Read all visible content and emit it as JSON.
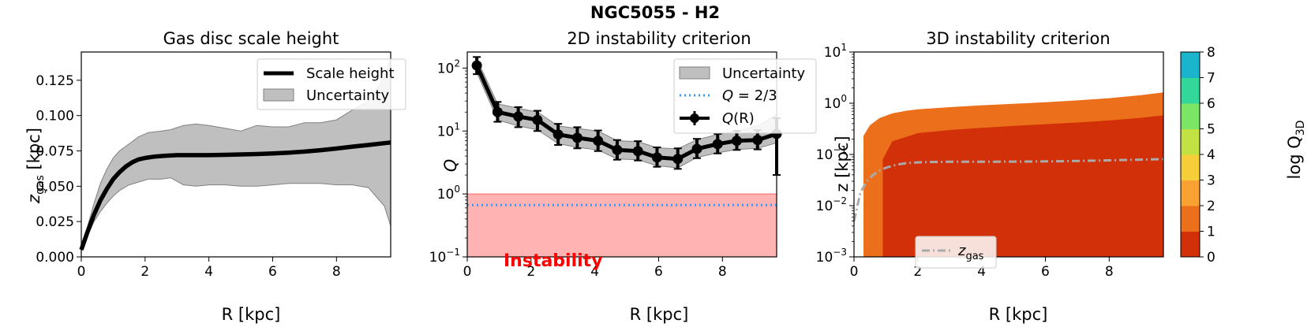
{
  "figure": {
    "title": "NGC5055 - H2"
  },
  "chart_data": [
    {
      "type": "line",
      "title": "Gas disc scale height",
      "xlabel": "R [kpc]",
      "ylabel_main": "z",
      "ylabel_sub": "gas",
      "ylabel_unit": " [kpc]",
      "xlim": [
        0,
        9.7
      ],
      "ylim": [
        0,
        0.145
      ],
      "xticks": [
        0,
        2,
        4,
        6,
        8
      ],
      "xtick_labels": [
        "0",
        "2",
        "4",
        "6",
        "8"
      ],
      "yticks": [
        0,
        0.025,
        0.05,
        0.075,
        0.1,
        0.125
      ],
      "ytick_labels": [
        "0.000",
        "0.025",
        "0.050",
        "0.075",
        "0.100",
        "0.125"
      ],
      "series": [
        {
          "name": "Scale height",
          "x": [
            0,
            0.2,
            0.4,
            0.6,
            0.8,
            1.0,
            1.2,
            1.4,
            1.6,
            1.8,
            2.0,
            2.3,
            2.6,
            3.0,
            3.5,
            4.0,
            4.5,
            5.0,
            5.5,
            6.0,
            6.5,
            7.0,
            7.5,
            8.0,
            8.5,
            9.0,
            9.5,
            9.7
          ],
          "y": [
            0.005,
            0.018,
            0.03,
            0.04,
            0.048,
            0.055,
            0.06,
            0.064,
            0.067,
            0.069,
            0.07,
            0.071,
            0.0715,
            0.072,
            0.072,
            0.072,
            0.0722,
            0.0725,
            0.0728,
            0.0732,
            0.0738,
            0.0745,
            0.0755,
            0.0767,
            0.078,
            0.0792,
            0.0805,
            0.081
          ]
        },
        {
          "name": "Uncertainty",
          "x": [
            0,
            0.2,
            0.4,
            0.6,
            0.8,
            1.0,
            1.2,
            1.5,
            1.8,
            2.1,
            2.5,
            2.8,
            3.2,
            3.6,
            4.0,
            4.5,
            5.0,
            5.5,
            6.0,
            6.5,
            7.0,
            7.5,
            8.0,
            8.5,
            9.0,
            9.5,
            9.7
          ],
          "upper": [
            0.006,
            0.022,
            0.038,
            0.052,
            0.062,
            0.07,
            0.075,
            0.08,
            0.085,
            0.088,
            0.089,
            0.09,
            0.093,
            0.094,
            0.093,
            0.091,
            0.089,
            0.093,
            0.092,
            0.092,
            0.095,
            0.095,
            0.097,
            0.104,
            0.11,
            0.127,
            0.14
          ],
          "lower": [
            0.004,
            0.015,
            0.025,
            0.032,
            0.038,
            0.043,
            0.047,
            0.051,
            0.053,
            0.055,
            0.055,
            0.056,
            0.051,
            0.05,
            0.051,
            0.051,
            0.05,
            0.05,
            0.051,
            0.052,
            0.052,
            0.052,
            0.051,
            0.051,
            0.049,
            0.036,
            0.022
          ]
        }
      ],
      "legend": {
        "placement": "upper-right",
        "line_label": "Scale height",
        "band_label": "Uncertainty"
      }
    },
    {
      "type": "scatter",
      "title": "2D instability criterion",
      "xlabel": "R [kpc]",
      "ylabel": "Q",
      "yscale": "log",
      "xlim": [
        0,
        9.7
      ],
      "ylim": [
        0.1,
        180
      ],
      "xticks": [
        0,
        2,
        4,
        6,
        8
      ],
      "xtick_labels": [
        "0",
        "2",
        "4",
        "6",
        "8"
      ],
      "yticks": [
        0.1,
        1,
        10,
        100
      ],
      "ytick_labels": [
        [
          "10",
          "−1"
        ],
        [
          "10",
          "0"
        ],
        [
          "10",
          "1"
        ],
        [
          "10",
          "2"
        ]
      ],
      "points": {
        "name": "Q(R)",
        "x": [
          0.3,
          0.95,
          1.6,
          2.2,
          2.85,
          3.45,
          4.1,
          4.7,
          5.35,
          5.95,
          6.6,
          7.2,
          7.85,
          8.45,
          9.1,
          9.7
        ],
        "y": [
          110,
          20,
          17,
          15,
          8.8,
          7.8,
          7.0,
          5.0,
          4.8,
          3.8,
          3.6,
          5.2,
          6.2,
          7.0,
          7.2,
          9.0
        ],
        "err_low": [
          80,
          14,
          11.5,
          10,
          6.0,
          5.3,
          4.8,
          3.5,
          3.4,
          2.7,
          2.5,
          3.7,
          4.4,
          5.0,
          5.1,
          2.0
        ],
        "err_high": [
          150,
          29,
          24,
          21,
          13,
          11.5,
          10.2,
          7.2,
          6.9,
          5.5,
          5.3,
          7.5,
          9.0,
          10.1,
          10.4,
          16
        ]
      },
      "uncertainty_band": {
        "name": "Uncertainty",
        "upper": [
          140,
          27,
          23,
          20,
          12,
          11,
          10,
          7,
          6.8,
          5.4,
          5.2,
          7.3,
          8.8,
          10,
          12,
          18
        ],
        "lower": [
          85,
          15,
          12,
          10.5,
          6.3,
          5.5,
          5.0,
          3.6,
          3.5,
          2.8,
          2.6,
          3.8,
          4.5,
          5.1,
          5.3,
          6.5
        ]
      },
      "threshold_line": {
        "label_prefix": "Q",
        "label_suffix": " = 2/3",
        "value": 0.6667
      },
      "instability_region": {
        "label": "Instability",
        "y_from": 0.1,
        "y_to": 1.0
      },
      "legend": {
        "placement": "upper-right",
        "band_label": "Uncertainty",
        "line_label_prefix": "Q",
        "line_label_suffix": " = 2/3",
        "points_label_prefix": "Q",
        "points_label_suffix": "(R)"
      }
    },
    {
      "type": "heatmap",
      "title": "3D instability criterion",
      "xlabel": "R [kpc]",
      "ylabel": "z [kpc]",
      "yscale": "log",
      "xlim": [
        0,
        9.7
      ],
      "ylim": [
        0.001,
        10
      ],
      "xticks": [
        0,
        2,
        4,
        6,
        8
      ],
      "xtick_labels": [
        "0",
        "2",
        "4",
        "6",
        "8"
      ],
      "yticks": [
        0.001,
        0.01,
        0.1,
        1,
        10
      ],
      "ytick_labels": [
        [
          "10",
          "−3"
        ],
        [
          "10",
          "−2"
        ],
        [
          "10",
          "−1"
        ],
        [
          "10",
          "0"
        ],
        [
          "10",
          "1"
        ]
      ],
      "levels": [
        0,
        1,
        2,
        3,
        4,
        5,
        6,
        7,
        8
      ],
      "level_colors": [
        "#d13008",
        "#ec6f1b",
        "#f9a233",
        "#f5ce3a",
        "#c2e244",
        "#7be566",
        "#33d79a",
        "#1ab4cc",
        "#2c8ae6"
      ],
      "colorbar": {
        "label_main": "log Q",
        "label_sub": "3D",
        "tick_labels": [
          "0",
          "1",
          "2",
          "3",
          "4",
          "5",
          "6",
          "7",
          "8"
        ]
      },
      "contours": {
        "r_start": 0.3,
        "r_inner_block": 0.9,
        "top_x": [
          0.3,
          0.5,
          0.8,
          1.2,
          1.6,
          2.0,
          3.0,
          4.0,
          5.0,
          6.0,
          7.0,
          8.0,
          9.0,
          9.7
        ],
        "top_z": [
          0.25,
          0.4,
          0.55,
          0.68,
          0.76,
          0.82,
          0.9,
          0.98,
          1.05,
          1.12,
          1.22,
          1.35,
          1.55,
          1.75
        ],
        "band_factors": [
          1.0,
          0.93,
          0.87,
          0.82,
          0.77,
          0.72,
          0.66,
          0.6,
          0.54
        ],
        "inner_top_x": [
          0.9,
          1.2,
          2.0,
          3.0,
          4.0,
          5.0,
          6.0,
          7.0,
          8.0,
          9.0,
          9.7
        ],
        "inner_top_z": [
          0.08,
          0.18,
          0.26,
          0.3,
          0.33,
          0.36,
          0.39,
          0.42,
          0.46,
          0.52,
          0.58
        ]
      },
      "zgas_line": {
        "name": "z_gas",
        "label_main": "z",
        "label_sub": "gas"
      }
    }
  ]
}
